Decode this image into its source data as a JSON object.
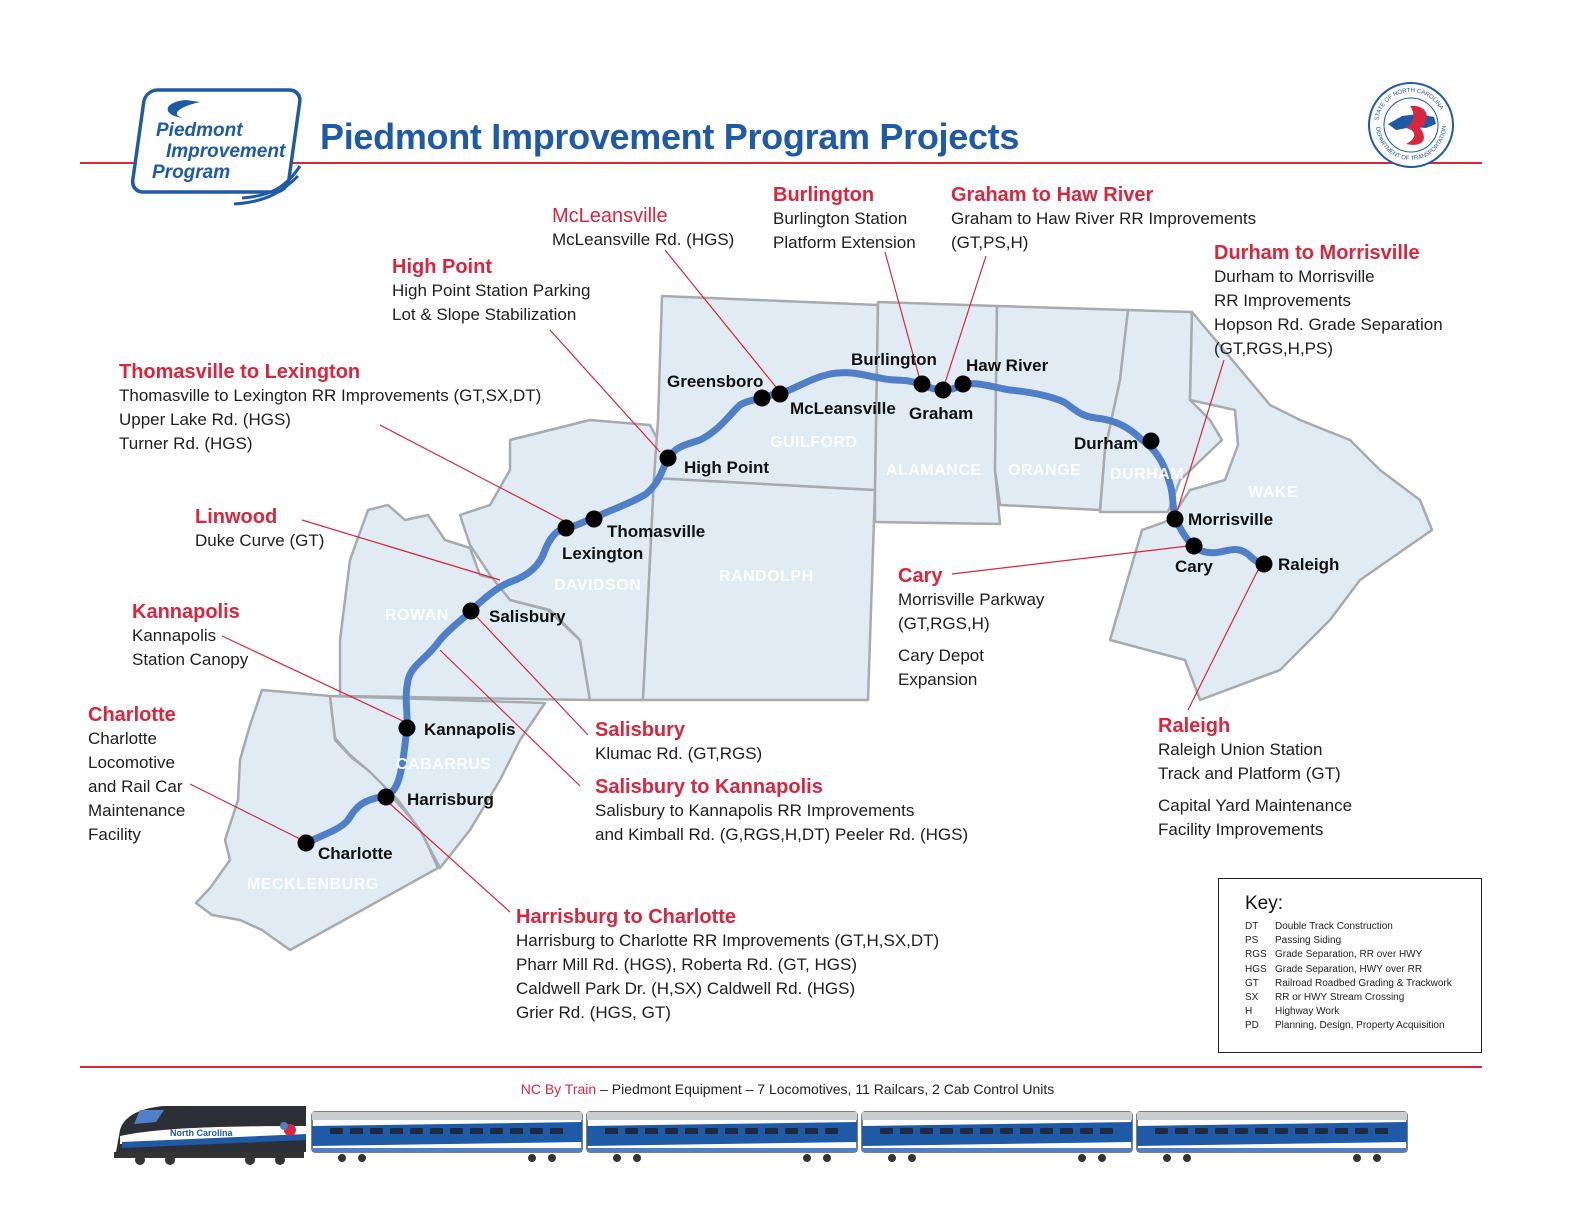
{
  "title": "Piedmont Improvement Program Projects",
  "logo": {
    "line1": "Piedmont",
    "line2": "Improvement",
    "line3": "Program"
  },
  "seal": {
    "text_top": "STATE OF NORTH CAROLINA",
    "text_bottom": "DEPARTMENT OF TRANSPORTATION"
  },
  "colors": {
    "accent_red": "#d7263d",
    "title_blue": "#1f5aa6",
    "route_blue": "#4f7fc7",
    "county_fill": "#e1ebf3",
    "county_stroke": "#a7abaf"
  },
  "stations": [
    {
      "name": "Charlotte"
    },
    {
      "name": "Harrisburg"
    },
    {
      "name": "Kannapolis"
    },
    {
      "name": "Salisbury"
    },
    {
      "name": "Lexington"
    },
    {
      "name": "Thomasville"
    },
    {
      "name": "High Point"
    },
    {
      "name": "Greensboro"
    },
    {
      "name": "McLeansville"
    },
    {
      "name": "Burlington"
    },
    {
      "name": "Graham"
    },
    {
      "name": "Haw River"
    },
    {
      "name": "Durham"
    },
    {
      "name": "Morrisville"
    },
    {
      "name": "Cary"
    },
    {
      "name": "Raleigh"
    }
  ],
  "counties": [
    "MECKLENBURG",
    "CABARRUS",
    "ROWAN",
    "DAVIDSON",
    "RANDOLPH",
    "GUILFORD",
    "ALAMANCE",
    "ORANGE",
    "DURHAM",
    "WAKE"
  ],
  "projects": {
    "mcleansville": {
      "heading": "McLeansville",
      "lines": [
        "McLeansville Rd. (HGS)"
      ]
    },
    "burlington": {
      "heading": "Burlington",
      "lines": [
        "Burlington Station",
        "Platform Extension"
      ]
    },
    "graham": {
      "heading": "Graham to Haw River",
      "lines": [
        "Graham to Haw River RR Improvements",
        "(GT,PS,H)"
      ]
    },
    "durham": {
      "heading": "Durham to Morrisville",
      "lines": [
        "Durham to Morrisville",
        "RR Improvements",
        "Hopson Rd. Grade Separation",
        "(GT,RGS,H,PS)"
      ]
    },
    "highpoint": {
      "heading": "High Point",
      "lines": [
        "High Point Station Parking",
        "Lot & Slope Stabilization"
      ]
    },
    "thomasville": {
      "heading": "Thomasville to Lexington",
      "lines": [
        "Thomasville to Lexington RR Improvements  (GT,SX,DT)",
        "Upper Lake Rd.  (HGS)",
        "Turner Rd.  (HGS)"
      ]
    },
    "linwood": {
      "heading": "Linwood",
      "lines": [
        "Duke Curve (GT)"
      ]
    },
    "kannapolis": {
      "heading": "Kannapolis",
      "lines": [
        "Kannapolis",
        "Station Canopy"
      ]
    },
    "charlotte": {
      "heading": "Charlotte",
      "lines": [
        "Charlotte",
        "Locomotive",
        "and Rail Car",
        "Maintenance",
        "Facility"
      ]
    },
    "salisbury": {
      "heading": "Salisbury",
      "lines": [
        "Klumac Rd.  (GT,RGS)"
      ]
    },
    "salkan": {
      "heading": "Salisbury to Kannapolis",
      "lines": [
        "Salisbury to Kannapolis RR Improvements",
        "and Kimball Rd.  (G,RGS,H,DT)   Peeler Rd. (HGS)"
      ]
    },
    "harrisburg": {
      "heading": "Harrisburg to Charlotte",
      "lines": [
        "Harrisburg to Charlotte RR Improvements (GT,H,SX,DT)",
        "Pharr Mill Rd. (HGS),        Roberta Rd. (GT, HGS)",
        "Caldwell Park Dr. (H,SX)      Caldwell Rd. (HGS)",
        "Grier Rd. (HGS, GT)"
      ]
    },
    "cary": {
      "heading": "Cary",
      "lines": [
        "Morrisville Parkway",
        "(GT,RGS,H)"
      ],
      "lines2": [
        "Cary Depot",
        "Expansion"
      ]
    },
    "raleigh": {
      "heading": "Raleigh",
      "lines": [
        "Raleigh Union Station",
        "Track and Platform (GT)"
      ],
      "lines2": [
        "Capital Yard Maintenance",
        "Facility Improvements"
      ]
    }
  },
  "key": {
    "title": "Key:",
    "items": [
      {
        "code": "DT",
        "desc": "Double Track Construction"
      },
      {
        "code": "PS",
        "desc": "Passing Siding"
      },
      {
        "code": "RGS",
        "desc": "Grade Separation, RR over HWY"
      },
      {
        "code": "HGS",
        "desc": "Grade Separation, HWY over RR"
      },
      {
        "code": "GT",
        "desc": "Railroad Roadbed Grading & Trackwork"
      },
      {
        "code": "SX",
        "desc": "RR or HWY Stream Crossing"
      },
      {
        "code": "H",
        "desc": "Highway Work"
      },
      {
        "code": "PD",
        "desc": "Planning, Design, Property Acquisition"
      }
    ]
  },
  "footer": {
    "brand": "NC By Train",
    "text": " – Piedmont Equipment – 7 Locomotives, 11 Railcars, 2 Cab Control Units"
  },
  "train": {
    "locomotive_label": "North Carolina"
  }
}
